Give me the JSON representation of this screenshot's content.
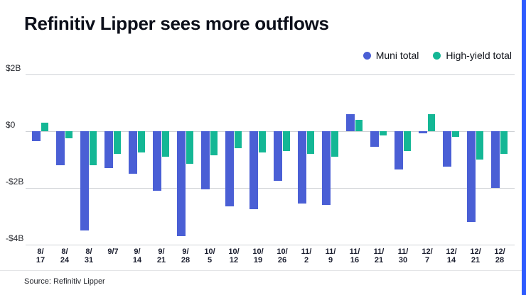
{
  "title": "Refinitiv Lipper sees more outflows",
  "source": "Source: Refinitiv Lipper",
  "accent_color": "#2e5bff",
  "chart_data": {
    "type": "bar",
    "title": "Refinitiv Lipper sees more outflows",
    "xlabel": "",
    "ylabel": "",
    "ylim": [
      -4,
      2
    ],
    "grid": true,
    "legend_position": "top-right",
    "categories": [
      "8/17",
      "8/24",
      "8/31",
      "9/7",
      "9/14",
      "9/21",
      "9/28",
      "10/5",
      "10/12",
      "10/19",
      "10/26",
      "11/2",
      "11/9",
      "11/16",
      "11/21",
      "11/30",
      "12/7",
      "12/14",
      "12/21",
      "12/28"
    ],
    "series": [
      {
        "name": "Muni total",
        "color": "#4a5fd5",
        "values": [
          -0.35,
          -1.2,
          -3.5,
          -1.3,
          -1.5,
          -2.1,
          -3.7,
          -2.05,
          -2.65,
          -2.75,
          -1.75,
          -2.55,
          -2.6,
          0.6,
          -0.55,
          -1.35,
          -0.08,
          -1.25,
          -3.2,
          -2.0
        ]
      },
      {
        "name": "High-yield total",
        "color": "#14b795",
        "values": [
          0.3,
          -0.25,
          -1.2,
          -0.8,
          -0.75,
          -0.9,
          -1.15,
          -0.85,
          -0.6,
          -0.75,
          -0.7,
          -0.8,
          -0.9,
          0.4,
          -0.15,
          -0.7,
          0.6,
          -0.2,
          -1.0,
          -0.8
        ]
      }
    ],
    "yticks": [
      {
        "value": 2,
        "label": "$2B"
      },
      {
        "value": 0,
        "label": "$0"
      },
      {
        "value": -2,
        "label": "-$2B"
      },
      {
        "value": -4,
        "label": "-$4B"
      }
    ]
  }
}
